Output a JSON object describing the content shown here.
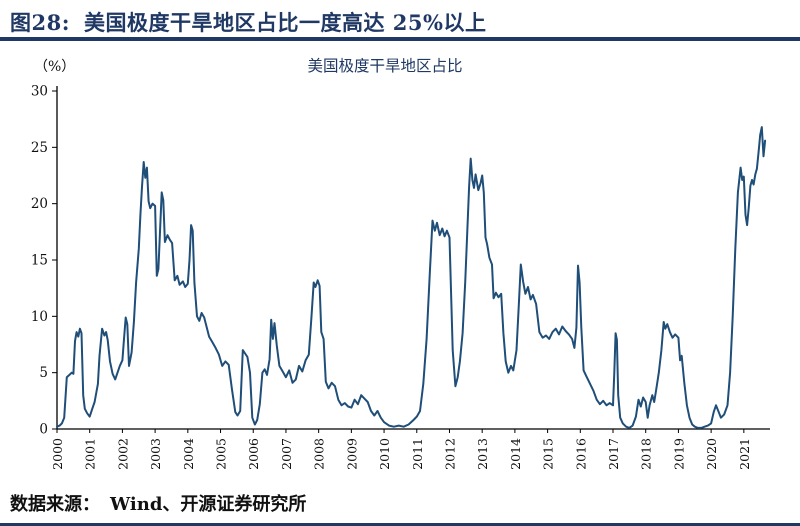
{
  "header": {
    "figure_label": "图28:",
    "title": "美国极度干旱地区占比一度高达 25%以上"
  },
  "footer": {
    "source_label": "数据来源：",
    "source_text": "Wind、开源证券研究所"
  },
  "colors": {
    "accent_navy": "#1f3864",
    "line": "#1f4e79",
    "axis": "#000000"
  },
  "chart_data": {
    "type": "line",
    "title": "美国极度干旱地区占比",
    "ylabel": "（%）",
    "xlabel": "",
    "ylim": [
      0,
      30
    ],
    "xlim": [
      2000,
      2021.8
    ],
    "y_ticks": [
      0,
      5,
      10,
      15,
      20,
      25,
      30
    ],
    "x_ticks": [
      2000,
      2001,
      2002,
      2003,
      2004,
      2005,
      2006,
      2007,
      2008,
      2009,
      2010,
      2011,
      2012,
      2013,
      2014,
      2015,
      2016,
      2017,
      2018,
      2019,
      2020,
      2021
    ],
    "grid": false,
    "legend": "none",
    "line_color": "#1f4e79",
    "points": [
      [
        2000.0,
        0.2
      ],
      [
        2000.08,
        0.3
      ],
      [
        2000.15,
        0.5
      ],
      [
        2000.22,
        1.0
      ],
      [
        2000.3,
        4.6
      ],
      [
        2000.38,
        4.8
      ],
      [
        2000.45,
        5.0
      ],
      [
        2000.5,
        4.9
      ],
      [
        2000.55,
        7.8
      ],
      [
        2000.6,
        8.6
      ],
      [
        2000.65,
        8.2
      ],
      [
        2000.7,
        8.9
      ],
      [
        2000.75,
        8.5
      ],
      [
        2000.8,
        3.0
      ],
      [
        2000.85,
        1.8
      ],
      [
        2000.92,
        1.4
      ],
      [
        2001.0,
        1.1
      ],
      [
        2001.08,
        1.8
      ],
      [
        2001.15,
        2.4
      ],
      [
        2001.25,
        4.0
      ],
      [
        2001.3,
        6.5
      ],
      [
        2001.38,
        8.9
      ],
      [
        2001.45,
        8.3
      ],
      [
        2001.5,
        8.6
      ],
      [
        2001.55,
        7.9
      ],
      [
        2001.62,
        6.0
      ],
      [
        2001.7,
        4.9
      ],
      [
        2001.78,
        4.4
      ],
      [
        2001.85,
        5.0
      ],
      [
        2001.92,
        5.6
      ],
      [
        2002.0,
        6.1
      ],
      [
        2002.05,
        8.0
      ],
      [
        2002.1,
        9.9
      ],
      [
        2002.15,
        9.3
      ],
      [
        2002.2,
        5.6
      ],
      [
        2002.28,
        6.8
      ],
      [
        2002.35,
        9.5
      ],
      [
        2002.42,
        13.0
      ],
      [
        2002.5,
        16.0
      ],
      [
        2002.55,
        19.0
      ],
      [
        2002.6,
        21.5
      ],
      [
        2002.65,
        23.7
      ],
      [
        2002.7,
        22.3
      ],
      [
        2002.75,
        23.2
      ],
      [
        2002.8,
        20.2
      ],
      [
        2002.85,
        19.6
      ],
      [
        2002.92,
        20.0
      ],
      [
        2003.0,
        19.8
      ],
      [
        2003.05,
        13.6
      ],
      [
        2003.1,
        14.2
      ],
      [
        2003.15,
        17.5
      ],
      [
        2003.2,
        21.0
      ],
      [
        2003.25,
        20.3
      ],
      [
        2003.3,
        16.6
      ],
      [
        2003.38,
        17.2
      ],
      [
        2003.45,
        16.8
      ],
      [
        2003.52,
        16.5
      ],
      [
        2003.6,
        13.2
      ],
      [
        2003.68,
        13.6
      ],
      [
        2003.75,
        12.8
      ],
      [
        2003.85,
        13.1
      ],
      [
        2003.92,
        12.6
      ],
      [
        2004.0,
        12.9
      ],
      [
        2004.05,
        15.0
      ],
      [
        2004.1,
        18.1
      ],
      [
        2004.15,
        17.6
      ],
      [
        2004.2,
        13.0
      ],
      [
        2004.28,
        10.0
      ],
      [
        2004.35,
        9.6
      ],
      [
        2004.42,
        10.3
      ],
      [
        2004.5,
        9.9
      ],
      [
        2004.58,
        9.0
      ],
      [
        2004.65,
        8.2
      ],
      [
        2004.75,
        7.7
      ],
      [
        2004.85,
        7.2
      ],
      [
        2004.95,
        6.6
      ],
      [
        2005.05,
        5.6
      ],
      [
        2005.15,
        6.0
      ],
      [
        2005.25,
        5.7
      ],
      [
        2005.35,
        3.5
      ],
      [
        2005.45,
        1.5
      ],
      [
        2005.52,
        1.2
      ],
      [
        2005.6,
        1.6
      ],
      [
        2005.68,
        7.0
      ],
      [
        2005.75,
        6.7
      ],
      [
        2005.82,
        6.4
      ],
      [
        2005.9,
        5.0
      ],
      [
        2005.97,
        1.0
      ],
      [
        2006.05,
        0.4
      ],
      [
        2006.12,
        0.8
      ],
      [
        2006.2,
        2.2
      ],
      [
        2006.28,
        5.0
      ],
      [
        2006.35,
        5.3
      ],
      [
        2006.42,
        4.8
      ],
      [
        2006.5,
        6.2
      ],
      [
        2006.55,
        9.7
      ],
      [
        2006.6,
        8.0
      ],
      [
        2006.65,
        9.4
      ],
      [
        2006.72,
        7.4
      ],
      [
        2006.8,
        5.6
      ],
      [
        2006.9,
        5.1
      ],
      [
        2007.0,
        4.6
      ],
      [
        2007.1,
        5.2
      ],
      [
        2007.2,
        4.1
      ],
      [
        2007.3,
        4.4
      ],
      [
        2007.4,
        5.6
      ],
      [
        2007.5,
        5.1
      ],
      [
        2007.6,
        6.1
      ],
      [
        2007.7,
        6.6
      ],
      [
        2007.78,
        10.0
      ],
      [
        2007.85,
        13.0
      ],
      [
        2007.9,
        12.6
      ],
      [
        2007.97,
        13.2
      ],
      [
        2008.03,
        12.7
      ],
      [
        2008.08,
        8.6
      ],
      [
        2008.15,
        8.0
      ],
      [
        2008.22,
        4.2
      ],
      [
        2008.3,
        3.6
      ],
      [
        2008.4,
        4.1
      ],
      [
        2008.5,
        3.8
      ],
      [
        2008.6,
        2.6
      ],
      [
        2008.7,
        2.1
      ],
      [
        2008.8,
        2.3
      ],
      [
        2008.9,
        2.0
      ],
      [
        2009.0,
        1.9
      ],
      [
        2009.1,
        2.6
      ],
      [
        2009.2,
        2.2
      ],
      [
        2009.3,
        3.0
      ],
      [
        2009.4,
        2.7
      ],
      [
        2009.5,
        2.4
      ],
      [
        2009.6,
        1.6
      ],
      [
        2009.7,
        1.2
      ],
      [
        2009.8,
        1.6
      ],
      [
        2009.9,
        1.0
      ],
      [
        2010.0,
        0.6
      ],
      [
        2010.15,
        0.3
      ],
      [
        2010.3,
        0.2
      ],
      [
        2010.45,
        0.3
      ],
      [
        2010.6,
        0.2
      ],
      [
        2010.75,
        0.4
      ],
      [
        2010.9,
        0.8
      ],
      [
        2011.0,
        1.1
      ],
      [
        2011.1,
        1.6
      ],
      [
        2011.2,
        4.0
      ],
      [
        2011.3,
        8.0
      ],
      [
        2011.4,
        14.0
      ],
      [
        2011.48,
        18.5
      ],
      [
        2011.55,
        17.6
      ],
      [
        2011.62,
        18.3
      ],
      [
        2011.7,
        17.2
      ],
      [
        2011.78,
        17.8
      ],
      [
        2011.85,
        17.1
      ],
      [
        2011.92,
        17.6
      ],
      [
        2012.0,
        17.0
      ],
      [
        2012.05,
        12.0
      ],
      [
        2012.1,
        7.0
      ],
      [
        2012.18,
        3.8
      ],
      [
        2012.25,
        4.6
      ],
      [
        2012.32,
        6.0
      ],
      [
        2012.4,
        8.5
      ],
      [
        2012.48,
        13.0
      ],
      [
        2012.55,
        18.0
      ],
      [
        2012.6,
        21.5
      ],
      [
        2012.65,
        24.0
      ],
      [
        2012.7,
        22.1
      ],
      [
        2012.75,
        21.4
      ],
      [
        2012.8,
        22.6
      ],
      [
        2012.88,
        21.2
      ],
      [
        2012.95,
        21.8
      ],
      [
        2013.0,
        22.5
      ],
      [
        2013.05,
        21.0
      ],
      [
        2013.1,
        17.0
      ],
      [
        2013.15,
        16.4
      ],
      [
        2013.22,
        15.2
      ],
      [
        2013.3,
        14.6
      ],
      [
        2013.35,
        11.6
      ],
      [
        2013.42,
        12.1
      ],
      [
        2013.5,
        11.7
      ],
      [
        2013.58,
        12.0
      ],
      [
        2013.65,
        8.5
      ],
      [
        2013.72,
        6.0
      ],
      [
        2013.8,
        5.0
      ],
      [
        2013.88,
        5.6
      ],
      [
        2013.95,
        5.2
      ],
      [
        2014.05,
        7.0
      ],
      [
        2014.12,
        11.0
      ],
      [
        2014.18,
        14.6
      ],
      [
        2014.25,
        13.1
      ],
      [
        2014.32,
        12.0
      ],
      [
        2014.4,
        12.6
      ],
      [
        2014.48,
        11.5
      ],
      [
        2014.55,
        11.9
      ],
      [
        2014.65,
        11.1
      ],
      [
        2014.75,
        8.6
      ],
      [
        2014.85,
        8.1
      ],
      [
        2014.95,
        8.3
      ],
      [
        2015.05,
        8.0
      ],
      [
        2015.15,
        8.6
      ],
      [
        2015.25,
        8.9
      ],
      [
        2015.35,
        8.4
      ],
      [
        2015.45,
        9.1
      ],
      [
        2015.55,
        8.7
      ],
      [
        2015.65,
        8.4
      ],
      [
        2015.75,
        8.0
      ],
      [
        2015.82,
        7.2
      ],
      [
        2015.88,
        9.0
      ],
      [
        2015.93,
        14.5
      ],
      [
        2015.98,
        13.0
      ],
      [
        2016.03,
        9.0
      ],
      [
        2016.1,
        5.2
      ],
      [
        2016.2,
        4.6
      ],
      [
        2016.3,
        4.0
      ],
      [
        2016.4,
        3.4
      ],
      [
        2016.5,
        2.6
      ],
      [
        2016.6,
        2.2
      ],
      [
        2016.7,
        2.5
      ],
      [
        2016.8,
        2.1
      ],
      [
        2016.9,
        2.3
      ],
      [
        2017.0,
        2.1
      ],
      [
        2017.04,
        5.0
      ],
      [
        2017.08,
        8.5
      ],
      [
        2017.12,
        7.9
      ],
      [
        2017.16,
        3.0
      ],
      [
        2017.22,
        1.0
      ],
      [
        2017.3,
        0.5
      ],
      [
        2017.4,
        0.2
      ],
      [
        2017.5,
        0.1
      ],
      [
        2017.6,
        0.3
      ],
      [
        2017.7,
        1.1
      ],
      [
        2017.78,
        2.6
      ],
      [
        2017.85,
        2.0
      ],
      [
        2017.92,
        2.8
      ],
      [
        2018.0,
        2.4
      ],
      [
        2018.06,
        1.0
      ],
      [
        2018.12,
        2.1
      ],
      [
        2018.2,
        3.0
      ],
      [
        2018.26,
        2.4
      ],
      [
        2018.32,
        3.5
      ],
      [
        2018.4,
        5.0
      ],
      [
        2018.48,
        7.0
      ],
      [
        2018.55,
        9.5
      ],
      [
        2018.6,
        8.9
      ],
      [
        2018.66,
        9.3
      ],
      [
        2018.74,
        8.6
      ],
      [
        2018.82,
        8.1
      ],
      [
        2018.9,
        8.4
      ],
      [
        2019.0,
        8.1
      ],
      [
        2019.05,
        6.1
      ],
      [
        2019.1,
        6.5
      ],
      [
        2019.18,
        4.1
      ],
      [
        2019.26,
        2.1
      ],
      [
        2019.34,
        1.0
      ],
      [
        2019.42,
        0.4
      ],
      [
        2019.5,
        0.2
      ],
      [
        2019.6,
        0.1
      ],
      [
        2019.7,
        0.1
      ],
      [
        2019.8,
        0.2
      ],
      [
        2019.9,
        0.3
      ],
      [
        2020.0,
        0.5
      ],
      [
        2020.08,
        1.5
      ],
      [
        2020.15,
        2.1
      ],
      [
        2020.22,
        1.6
      ],
      [
        2020.3,
        1.0
      ],
      [
        2020.4,
        1.3
      ],
      [
        2020.5,
        2.1
      ],
      [
        2020.58,
        5.0
      ],
      [
        2020.66,
        10.0
      ],
      [
        2020.74,
        16.0
      ],
      [
        2020.82,
        21.0
      ],
      [
        2020.9,
        23.2
      ],
      [
        2020.95,
        22.1
      ],
      [
        2021.0,
        22.4
      ],
      [
        2021.05,
        19.0
      ],
      [
        2021.1,
        18.1
      ],
      [
        2021.15,
        19.6
      ],
      [
        2021.2,
        21.6
      ],
      [
        2021.25,
        22.1
      ],
      [
        2021.3,
        21.7
      ],
      [
        2021.35,
        22.6
      ],
      [
        2021.4,
        23.1
      ],
      [
        2021.45,
        24.6
      ],
      [
        2021.5,
        26.1
      ],
      [
        2021.55,
        26.8
      ],
      [
        2021.6,
        24.2
      ],
      [
        2021.65,
        25.6
      ]
    ]
  }
}
